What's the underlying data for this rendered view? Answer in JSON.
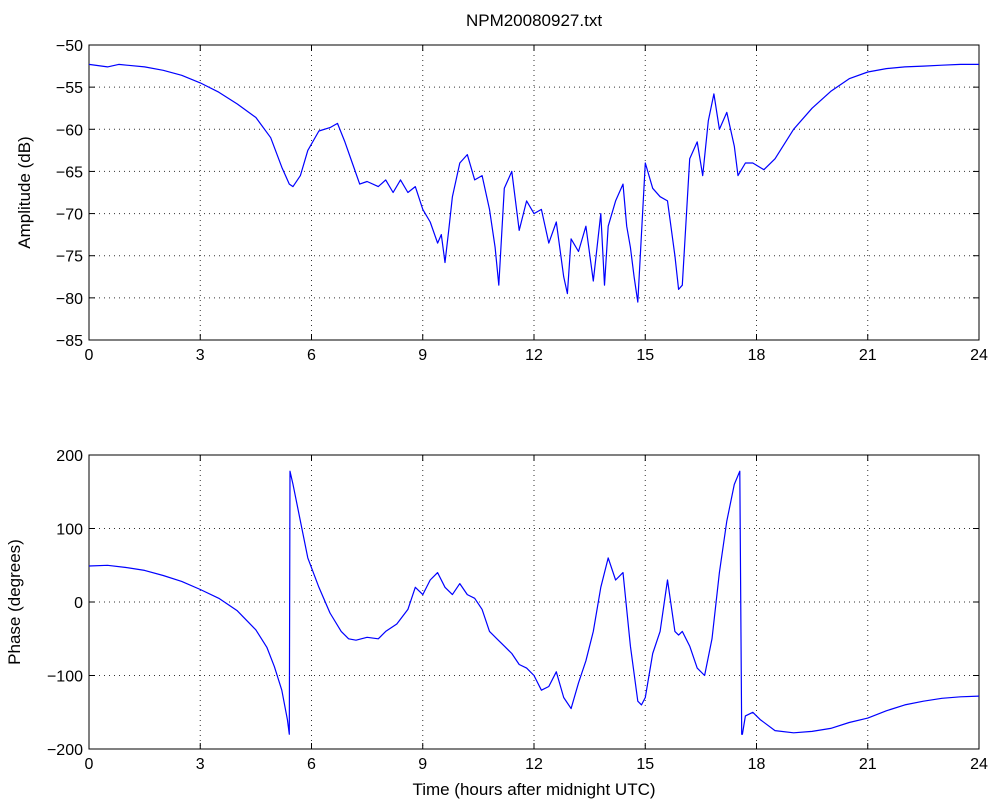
{
  "figure_title": "NPM20080927.txt",
  "colors": {
    "series": "#0000ff",
    "axis": "#000000",
    "background": "#ffffff"
  },
  "chart_data": [
    {
      "type": "line",
      "title": "NPM20080927.txt",
      "xlabel": "",
      "ylabel": "Amplitude (dB)",
      "xlim": [
        0,
        24
      ],
      "ylim": [
        -85,
        -50
      ],
      "xticks": [
        0,
        3,
        6,
        9,
        12,
        15,
        18,
        21,
        24
      ],
      "yticks": [
        -50,
        -55,
        -60,
        -65,
        -70,
        -75,
        -80,
        -85
      ],
      "grid": true,
      "series": [
        {
          "x": [
            0,
            0.5,
            0.8,
            1.5,
            2.0,
            2.5,
            3.0,
            3.5,
            4.0,
            4.5,
            4.9,
            5.2,
            5.4,
            5.5,
            5.7,
            5.9,
            6.2,
            6.5,
            6.7,
            6.9,
            7.1,
            7.3,
            7.5,
            7.8,
            8.0,
            8.2,
            8.4,
            8.6,
            8.8,
            9.0,
            9.2,
            9.4,
            9.5,
            9.6,
            9.7,
            9.8,
            9.9,
            10.0,
            10.2,
            10.4,
            10.6,
            10.8,
            10.95,
            11.05,
            11.2,
            11.4,
            11.6,
            11.8,
            12.0,
            12.2,
            12.4,
            12.6,
            12.8,
            12.9,
            13.0,
            13.2,
            13.4,
            13.6,
            13.8,
            13.9,
            14.0,
            14.2,
            14.4,
            14.5,
            14.6,
            14.7,
            14.8,
            15.0,
            15.2,
            15.4,
            15.6,
            15.8,
            15.9,
            16.0,
            16.2,
            16.4,
            16.55,
            16.7,
            16.85,
            17.0,
            17.2,
            17.4,
            17.5,
            17.7,
            17.9,
            18.2,
            18.5,
            19.0,
            19.5,
            20.0,
            20.5,
            21.0,
            21.5,
            22.0,
            22.5,
            23.0,
            23.5,
            24.0
          ],
          "values": [
            -52.3,
            -52.6,
            -52.3,
            -52.6,
            -53.0,
            -53.6,
            -54.5,
            -55.6,
            -57.0,
            -58.6,
            -61.0,
            -64.5,
            -66.5,
            -66.8,
            -65.5,
            -62.5,
            -60.2,
            -59.8,
            -59.3,
            -61.5,
            -64.0,
            -66.5,
            -66.2,
            -66.8,
            -66.0,
            -67.5,
            -66.0,
            -67.5,
            -66.8,
            -69.5,
            -71.0,
            -73.5,
            -72.5,
            -75.8,
            -72.0,
            -68.0,
            -66.0,
            -64.0,
            -63.0,
            -66.0,
            -65.5,
            -69.5,
            -74.0,
            -78.5,
            -67.0,
            -65.0,
            -72.0,
            -68.5,
            -70.0,
            -69.5,
            -73.5,
            -71.0,
            -77.5,
            -79.5,
            -73.0,
            -74.5,
            -71.5,
            -78.0,
            -70.0,
            -78.5,
            -71.5,
            -68.5,
            -66.5,
            -71.5,
            -74.0,
            -77.5,
            -80.5,
            -64.0,
            -67.0,
            -68.0,
            -68.5,
            -75.0,
            -79.0,
            -78.5,
            -63.5,
            -61.5,
            -65.5,
            -59.0,
            -55.8,
            -60.0,
            -58.0,
            -62.0,
            -65.5,
            -64.0,
            -64.0,
            -64.8,
            -63.5,
            -60.0,
            -57.5,
            -55.5,
            -54.0,
            -53.2,
            -52.8,
            -52.6,
            -52.5,
            -52.4,
            -52.3,
            -52.3
          ]
        }
      ]
    },
    {
      "type": "line",
      "title": "",
      "xlabel": "Time (hours after midnight UTC)",
      "ylabel": "Phase (degrees)",
      "xlim": [
        0,
        24
      ],
      "ylim": [
        -200,
        200
      ],
      "xticks": [
        0,
        3,
        6,
        9,
        12,
        15,
        18,
        21,
        24
      ],
      "yticks": [
        200,
        100,
        0,
        -100,
        -200
      ],
      "grid": true,
      "series": [
        {
          "x": [
            0,
            0.5,
            1.0,
            1.5,
            2.0,
            2.5,
            3.0,
            3.5,
            4.0,
            4.5,
            4.8,
            5.0,
            5.2,
            5.35,
            5.4,
            5.42,
            5.5,
            5.7,
            5.9,
            6.2,
            6.5,
            6.8,
            7.0,
            7.2,
            7.5,
            7.8,
            8.0,
            8.3,
            8.6,
            8.8,
            9.0,
            9.2,
            9.4,
            9.6,
            9.8,
            10.0,
            10.2,
            10.4,
            10.6,
            10.8,
            11.0,
            11.2,
            11.4,
            11.6,
            11.8,
            12.0,
            12.2,
            12.4,
            12.6,
            12.8,
            13.0,
            13.2,
            13.4,
            13.6,
            13.8,
            14.0,
            14.2,
            14.4,
            14.6,
            14.8,
            14.9,
            15.0,
            15.2,
            15.4,
            15.6,
            15.8,
            15.9,
            16.0,
            16.2,
            16.4,
            16.6,
            16.8,
            17.0,
            17.2,
            17.4,
            17.55,
            17.6,
            17.62,
            17.7,
            17.9,
            18.1,
            18.5,
            19.0,
            19.5,
            20.0,
            20.5,
            21.0,
            21.5,
            22.0,
            22.5,
            23.0,
            23.5,
            24.0
          ],
          "values": [
            49,
            50,
            47,
            43,
            36,
            28,
            17,
            5,
            -12,
            -38,
            -62,
            -88,
            -120,
            -160,
            -180,
            178,
            160,
            110,
            60,
            20,
            -15,
            -40,
            -50,
            -52,
            -48,
            -50,
            -40,
            -30,
            -10,
            20,
            10,
            30,
            40,
            20,
            10,
            25,
            10,
            5,
            -10,
            -40,
            -50,
            -60,
            -70,
            -85,
            -90,
            -100,
            -120,
            -115,
            -95,
            -130,
            -145,
            -110,
            -80,
            -40,
            20,
            60,
            30,
            40,
            -60,
            -135,
            -140,
            -130,
            -70,
            -40,
            30,
            -40,
            -45,
            -40,
            -60,
            -90,
            -100,
            -50,
            40,
            110,
            160,
            178,
            -180,
            -180,
            -155,
            -150,
            -160,
            -175,
            -178,
            -176,
            -172,
            -164,
            -158,
            -148,
            -140,
            -135,
            -131,
            -129,
            -128
          ]
        }
      ]
    }
  ]
}
